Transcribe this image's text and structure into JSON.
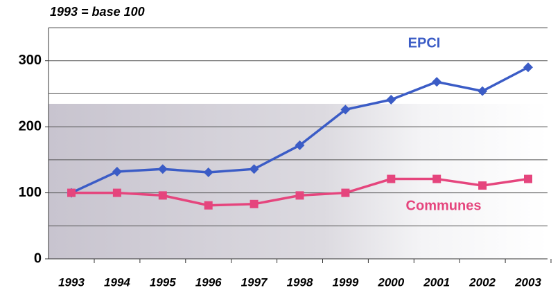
{
  "chart_data": {
    "type": "line",
    "subtitle": "1993 = base 100",
    "categories": [
      "1993",
      "1994",
      "1995",
      "1996",
      "1997",
      "1998",
      "1999",
      "2000",
      "2001",
      "2002",
      "2003"
    ],
    "series": [
      {
        "name": "EPCI",
        "color": "#3b5cc6",
        "marker": "diamond",
        "values": [
          100,
          132,
          136,
          131,
          136,
          172,
          226,
          241,
          268,
          254,
          290
        ]
      },
      {
        "name": "Communes",
        "color": "#e5457d",
        "marker": "square",
        "values": [
          100,
          100,
          96,
          81,
          83,
          96,
          100,
          121,
          121,
          111,
          121
        ]
      }
    ],
    "ylim": [
      0,
      350
    ],
    "yticks": [
      0,
      100,
      200,
      300
    ],
    "minor_yticks": [
      50,
      150,
      250,
      350
    ],
    "grid": true
  }
}
